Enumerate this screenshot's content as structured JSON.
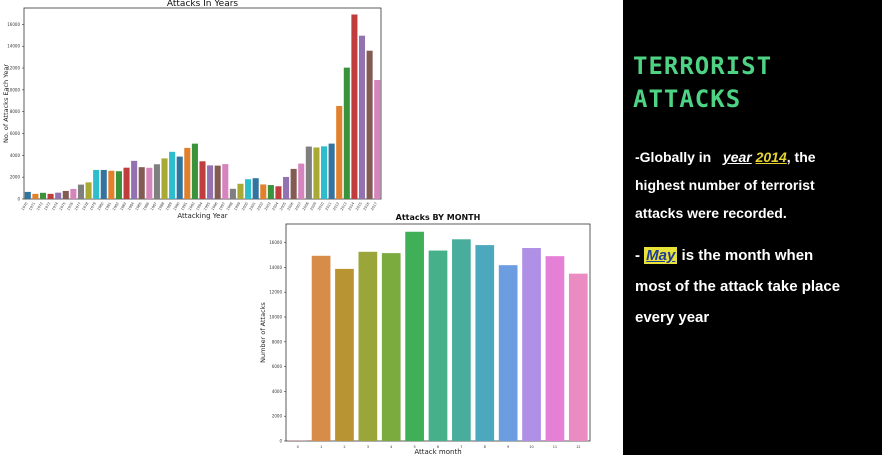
{
  "panel": {
    "title_line1": "TERRORIST",
    "title_line2": "ATTACKS",
    "note1_prefix": "-Globally in",
    "note1_year_word": "year",
    "note1_year_value": "2014",
    "note1_suffix_lines": [
      ", the",
      "highest number of terrorist",
      "attacks were recorded."
    ],
    "note2_prefix": "-",
    "note2_month": "May",
    "note2_lines": [
      " is the month when",
      "most of the attack take place",
      "every year"
    ]
  },
  "chart_data": [
    {
      "type": "bar",
      "title": "Attacks In Years",
      "xlabel": "Attacking Year",
      "ylabel": "No. of Attacks Each Year",
      "ylim": [
        0,
        17500
      ],
      "yticks": [
        0,
        2000,
        4000,
        6000,
        8000,
        10000,
        12000,
        14000,
        16000
      ],
      "categories": [
        "1970",
        "1971",
        "1972",
        "1973",
        "1974",
        "1975",
        "1976",
        "1977",
        "1978",
        "1979",
        "1980",
        "1981",
        "1982",
        "1983",
        "1984",
        "1985",
        "1986",
        "1987",
        "1988",
        "1989",
        "1990",
        "1991",
        "1992",
        "1994",
        "1995",
        "1996",
        "1997",
        "1998",
        "1999",
        "2000",
        "2001",
        "2002",
        "2003",
        "2004",
        "2005",
        "2006",
        "2007",
        "2008",
        "2009",
        "2010",
        "2011",
        "2012",
        "2013",
        "2014",
        "2015",
        "2016",
        "2017"
      ],
      "values": [
        651,
        471,
        568,
        473,
        581,
        740,
        923,
        1319,
        1526,
        2662,
        2662,
        2586,
        2544,
        2870,
        3495,
        2915,
        2860,
        3183,
        3721,
        4324,
        3887,
        4683,
        5071,
        3456,
        3081,
        3058,
        3197,
        934,
        1395,
        1814,
        1906,
        1333,
        1278,
        1166,
        2017,
        2758,
        3242,
        4805,
        4721,
        4826,
        5076,
        8522,
        12036,
        16903,
        14965,
        13587,
        10900
      ],
      "colors": [
        "#3274a1",
        "#e1812c",
        "#3a923a",
        "#c03d3e",
        "#9372b2",
        "#845b53",
        "#d684bd",
        "#7f7f7f",
        "#a9aa35",
        "#2ebdcc"
      ],
      "grid": false
    },
    {
      "type": "bar",
      "title": "Attacks BY MONTH",
      "xlabel": "Attack month",
      "ylabel": "Number of Attacks",
      "ylim": [
        0,
        17500
      ],
      "yticks": [
        0,
        2000,
        4000,
        6000,
        8000,
        10000,
        12000,
        14000,
        16000
      ],
      "categories": [
        "0",
        "1",
        "2",
        "3",
        "4",
        "5",
        "6",
        "7",
        "8",
        "9",
        "10",
        "11",
        "12"
      ],
      "values": [
        20,
        14936,
        13879,
        15257,
        15152,
        16875,
        15359,
        16268,
        15800,
        14180,
        15563,
        14906,
        13496
      ],
      "colors": [
        "#e77c8a",
        "#d88c4a",
        "#b89432",
        "#9ba63a",
        "#7bab3e",
        "#3fb058",
        "#46b08a",
        "#49ad9e",
        "#4ca9bd",
        "#6d9de1",
        "#b090e6",
        "#e67fd6",
        "#ea8bc1"
      ],
      "grid": false
    }
  ]
}
